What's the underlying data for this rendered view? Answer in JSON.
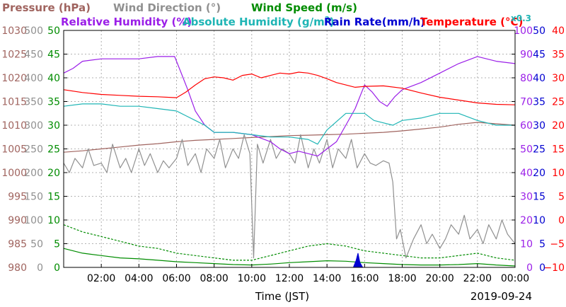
{
  "header": {
    "pressure": "Pressure (hPa)",
    "wind_direction": "Wind Direction (°)",
    "wind_speed": "Wind Speed (m/s)",
    "relative_humidity": "Relative Humidity (%)",
    "absolute_humidity": "Absolute Humidity (g/m",
    "absolute_humidity_sup": "3",
    "absolute_humidity_close": ")",
    "rain_rate": "Rain Rate(mm/h)",
    "temperature": "Temperature (°C)",
    "ah_scale": "x0.3"
  },
  "xlabel": "Time (JST)",
  "date": "2019-09-24",
  "colors": {
    "pressure": "#a0645f",
    "wind_direction": "#909090",
    "wind_speed": "#008c00",
    "relative_humidity": "#9b1fe8",
    "absolute_humidity": "#1fb5b5",
    "rain_rate": "#0000d0",
    "temperature": "#ff0000"
  },
  "chart_data": {
    "type": "line",
    "x_unit": "hours (JST)",
    "xlim": [
      0,
      24
    ],
    "x_ticks": [
      "02:00",
      "04:00",
      "06:00",
      "08:00",
      "10:00",
      "12:00",
      "14:00",
      "16:00",
      "18:00",
      "20:00",
      "22:00",
      "00:00"
    ],
    "axes": {
      "pressure": {
        "ticks": [
          "1030",
          "1025",
          "1020",
          "1015",
          "1010",
          "1005",
          "1000",
          "995",
          "990",
          "985",
          "980"
        ],
        "ylim": [
          980,
          1030
        ]
      },
      "wind_direction": {
        "ticks": [
          "500",
          "450",
          "400",
          "350",
          "300",
          "250",
          "200",
          "150",
          "100",
          "50",
          "0"
        ],
        "ylim": [
          0,
          500
        ]
      },
      "wind_speed": {
        "ticks": [
          "50",
          "45",
          "40",
          "35",
          "30",
          "25",
          "20",
          "15",
          "10",
          "5",
          "0"
        ],
        "ylim": [
          0,
          50
        ]
      },
      "relative_humidity": {
        "ticks": [
          "100",
          "90",
          "80",
          "70",
          "60",
          "50",
          "40",
          "30",
          "20",
          "10",
          "0"
        ],
        "ylim": [
          0,
          100
        ]
      },
      "rain_rate": {
        "ticks": [
          "50",
          "45",
          "40",
          "35",
          "30",
          "25",
          "20",
          "15",
          "10",
          "5",
          "0"
        ],
        "ylim": [
          0,
          50
        ]
      },
      "temperature": {
        "ticks": [
          "40",
          "35",
          "30",
          "25",
          "20",
          "15",
          "10",
          "5",
          "0",
          "−5",
          "−10"
        ],
        "ylim": [
          -10,
          40
        ]
      }
    },
    "series": [
      {
        "name": "Pressure (hPa)",
        "key": "pressure",
        "axis": "pressure",
        "style": "solid",
        "x": [
          0,
          1,
          2,
          3,
          4,
          5,
          6,
          7,
          8,
          9,
          10,
          11,
          12,
          13,
          14,
          15,
          16,
          17,
          18,
          19,
          20,
          21,
          22,
          23,
          24
        ],
        "y": [
          1004.3,
          1004.6,
          1005.0,
          1005.4,
          1005.8,
          1006.1,
          1006.5,
          1006.8,
          1007.0,
          1007.2,
          1007.4,
          1007.6,
          1007.8,
          1007.9,
          1008.0,
          1008.1,
          1008.3,
          1008.5,
          1008.8,
          1009.2,
          1009.6,
          1010.2,
          1010.6,
          1010.3,
          1010.0
        ]
      },
      {
        "name": "Wind Direction (°)",
        "key": "wind_direction",
        "axis": "wind_direction",
        "style": "solid",
        "x": [
          0,
          0.3,
          0.6,
          1,
          1.3,
          1.6,
          2,
          2.3,
          2.6,
          3,
          3.3,
          3.6,
          4,
          4.3,
          4.6,
          5,
          5.3,
          5.6,
          6,
          6.3,
          6.6,
          7,
          7.3,
          7.6,
          8,
          8.3,
          8.6,
          9,
          9.3,
          9.6,
          9.9,
          10.1,
          10.3,
          10.6,
          11,
          11.3,
          11.6,
          12,
          12.3,
          12.6,
          13,
          13.3,
          13.6,
          14,
          14.3,
          14.6,
          15,
          15.3,
          15.6,
          16,
          16.3,
          16.6,
          17,
          17.3,
          17.5,
          17.7,
          17.9,
          18.2,
          18.6,
          19,
          19.3,
          19.6,
          20,
          20.3,
          20.6,
          21,
          21.3,
          21.6,
          22,
          22.3,
          22.6,
          23,
          23.3,
          23.6,
          24
        ],
        "y": [
          220,
          200,
          230,
          210,
          250,
          215,
          220,
          200,
          260,
          210,
          230,
          200,
          250,
          215,
          240,
          200,
          225,
          210,
          230,
          270,
          215,
          240,
          200,
          250,
          230,
          270,
          210,
          250,
          230,
          280,
          240,
          20,
          260,
          220,
          270,
          230,
          250,
          240,
          220,
          280,
          210,
          250,
          220,
          270,
          210,
          250,
          230,
          270,
          210,
          240,
          220,
          215,
          225,
          220,
          180,
          60,
          80,
          20,
          60,
          90,
          50,
          70,
          40,
          60,
          90,
          70,
          110,
          60,
          80,
          50,
          90,
          60,
          100,
          70,
          50
        ]
      },
      {
        "name": "Wind Speed (m/s)",
        "key": "wind_speed",
        "axis": "wind_speed",
        "style": "solid",
        "x": [
          0,
          1,
          2,
          3,
          4,
          5,
          6,
          7,
          8,
          9,
          10,
          11,
          12,
          13,
          14,
          15,
          16,
          17,
          18,
          19,
          20,
          21,
          22,
          23,
          24
        ],
        "y": [
          4.0,
          3.0,
          2.5,
          2.0,
          1.8,
          1.5,
          1.2,
          1.0,
          0.8,
          0.6,
          0.5,
          0.7,
          1.0,
          1.2,
          1.4,
          1.3,
          1.0,
          0.8,
          0.6,
          0.5,
          0.5,
          0.6,
          0.8,
          0.5,
          0.3
        ]
      },
      {
        "name": "Wind Speed gust",
        "key": "wind_speed",
        "axis": "wind_speed",
        "style": "dashed",
        "x": [
          0,
          1,
          2,
          3,
          4,
          5,
          6,
          7,
          8,
          9,
          10,
          11,
          12,
          13,
          14,
          15,
          16,
          17,
          18,
          19,
          20,
          21,
          22,
          23,
          24
        ],
        "y": [
          9.0,
          7.5,
          6.5,
          5.5,
          4.5,
          4.0,
          3.0,
          2.5,
          2.0,
          1.5,
          1.5,
          2.5,
          3.5,
          4.5,
          5.0,
          4.5,
          3.5,
          3.0,
          2.5,
          2.0,
          2.0,
          2.5,
          3.0,
          2.0,
          1.5
        ]
      },
      {
        "name": "Relative Humidity (%)",
        "key": "relative_humidity",
        "axis": "relative_humidity",
        "style": "solid",
        "x": [
          0,
          0.5,
          1,
          2,
          3,
          4,
          5,
          5.9,
          6.2,
          6.6,
          7,
          7.5,
          8,
          9,
          10,
          11,
          11.5,
          12,
          12.5,
          13,
          13.5,
          14,
          14.5,
          15,
          15.5,
          16,
          16.4,
          16.8,
          17.2,
          17.6,
          18,
          19,
          20,
          21,
          22,
          23,
          24
        ],
        "y": [
          82,
          84,
          87,
          88,
          88,
          88,
          89,
          89,
          83,
          75,
          66,
          60,
          57,
          57,
          56,
          53,
          50,
          48,
          49,
          48,
          47,
          50,
          53,
          60,
          67,
          77,
          74,
          70,
          68,
          72,
          75,
          78,
          82,
          86,
          89,
          87,
          86
        ]
      },
      {
        "name": "Absolute Humidity (g/m3)",
        "key": "absolute_humidity",
        "axis": "relative_humidity",
        "style": "solid",
        "x": [
          0,
          1,
          2,
          3,
          4,
          5,
          6,
          6.5,
          7,
          7.5,
          8,
          9,
          10,
          11,
          12,
          13,
          13.5,
          14,
          15,
          16,
          16.5,
          17,
          17.5,
          18,
          19,
          20,
          21,
          22,
          23,
          24
        ],
        "y": [
          68,
          69,
          69,
          68,
          68,
          67,
          66,
          64,
          62,
          60,
          57,
          57,
          56,
          55,
          55,
          54,
          52,
          58,
          65,
          65,
          62,
          61,
          60,
          62,
          63,
          65,
          65,
          62,
          60,
          60
        ]
      },
      {
        "name": "Temperature (°C)",
        "key": "temperature",
        "axis": "temperature",
        "style": "solid",
        "x": [
          0,
          1,
          2,
          3,
          4,
          5,
          6,
          6.5,
          7,
          7.5,
          8,
          8.5,
          9,
          9.5,
          10,
          10.5,
          11,
          11.5,
          12,
          12.5,
          13,
          13.5,
          14,
          14.5,
          15,
          15.5,
          16,
          17,
          18,
          19,
          20,
          21,
          22,
          23,
          24
        ],
        "y": [
          27.5,
          26.9,
          26.5,
          26.3,
          26.1,
          26.0,
          25.8,
          27.0,
          28.5,
          29.8,
          30.2,
          30.0,
          29.5,
          30.5,
          30.8,
          30.0,
          30.5,
          31.0,
          30.8,
          31.2,
          31.0,
          30.5,
          29.8,
          29.0,
          28.5,
          28.0,
          28.2,
          28.3,
          27.8,
          26.8,
          25.9,
          25.3,
          24.7,
          24.4,
          24.3
        ]
      },
      {
        "name": "Rain Rate(mm/h)",
        "key": "rain_rate",
        "axis": "rain_rate",
        "style": "fill",
        "x": [
          15.4,
          15.55,
          15.65,
          15.75,
          15.9
        ],
        "y": [
          0,
          1.5,
          3.0,
          1.0,
          0
        ]
      }
    ]
  }
}
